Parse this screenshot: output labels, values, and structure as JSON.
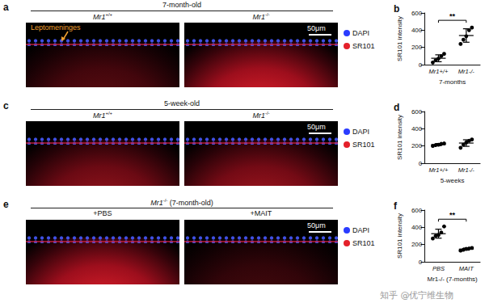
{
  "panels": [
    {
      "letter": "a",
      "header": "7-month-old",
      "images": [
        {
          "label": {
            "gene": "Mr1",
            "genotype": "+/+"
          }
        },
        {
          "label": {
            "gene": "Mr1",
            "genotype": "-/-"
          }
        }
      ],
      "annotation": "Leptomeninges",
      "scale_bar": "50μm",
      "stains": [
        {
          "name": "DAPI",
          "color": "#2a3cff"
        },
        {
          "name": "SR101",
          "color": "#e4202a"
        }
      ]
    },
    {
      "letter": "c",
      "header": "5-week-old",
      "images": [
        {
          "label": {
            "gene": "Mr1",
            "genotype": "+/+"
          }
        },
        {
          "label": {
            "gene": "Mr1",
            "genotype": "-/-"
          }
        }
      ],
      "scale_bar": "50μm",
      "stains": [
        {
          "name": "DAPI",
          "color": "#2a3cff"
        },
        {
          "name": "SR101",
          "color": "#e4202a"
        }
      ]
    },
    {
      "letter": "e",
      "header": {
        "gene": "Mr1",
        "genotype": "-/-",
        "suffix": " (7-month-old)"
      },
      "images": [
        {
          "label": "+PBS"
        },
        {
          "label": "+MAIT"
        }
      ],
      "scale_bar": "50μm",
      "stains": [
        {
          "name": "DAPI",
          "color": "#2a3cff"
        },
        {
          "name": "SR101",
          "color": "#e4202a"
        }
      ]
    }
  ],
  "chart_data": [
    {
      "type": "scatter",
      "panel_label": "b",
      "y_label": "SR101 intensity",
      "x_label": "7-months",
      "categories": [
        "Mr1+/+",
        "Mr1-/-"
      ],
      "values": [
        [
          25,
          50,
          70,
          100,
          125
        ],
        [
          240,
          290,
          330,
          400,
          430
        ]
      ],
      "mean": [
        74,
        338
      ],
      "error": [
        40,
        78
      ],
      "significance": "**",
      "ylim": [
        0,
        600
      ],
      "yticks": [
        0,
        200,
        400,
        600
      ],
      "grid": false,
      "color": "#000000"
    },
    {
      "type": "scatter",
      "panel_label": "d",
      "y_label": "SR101 intensity",
      "x_label": "5-weeks",
      "categories": [
        "Mr1+/+",
        "Mr1-/-"
      ],
      "values": [
        [
          200,
          210,
          215,
          225,
          230
        ],
        [
          180,
          215,
          240,
          260,
          275
        ]
      ],
      "mean": [
        216,
        234
      ],
      "error": [
        12,
        38
      ],
      "ylim": [
        0,
        600
      ],
      "yticks": [
        0,
        200,
        400,
        600
      ],
      "grid": false,
      "color": "#000000"
    },
    {
      "type": "scatter",
      "panel_label": "f",
      "y_label": "SR101 intensity",
      "x_label": "Mr1-/- (7-months)",
      "categories": [
        "PBS",
        "MAIT"
      ],
      "values": [
        [
          270,
          300,
          310,
          340,
          410
        ],
        [
          130,
          140,
          150,
          155,
          160
        ]
      ],
      "mean": [
        326,
        147
      ],
      "error": [
        52,
        12
      ],
      "significance": "**",
      "ylim": [
        0,
        600
      ],
      "yticks": [
        0,
        200,
        400,
        600
      ],
      "grid": false,
      "color": "#000000"
    }
  ],
  "watermark": "知乎 @优宁维生物"
}
